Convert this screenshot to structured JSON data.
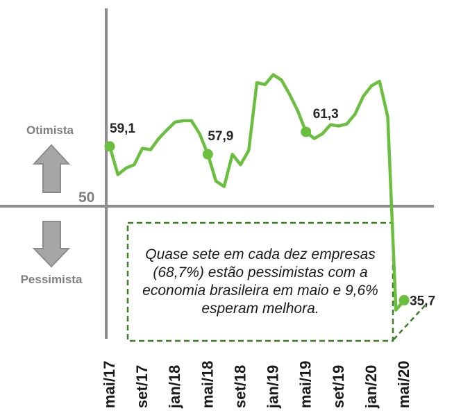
{
  "chart_data": {
    "type": "line",
    "x": [
      "mai/17",
      "jun/17",
      "jul/17",
      "ago/17",
      "set/17",
      "out/17",
      "nov/17",
      "dez/17",
      "jan/18",
      "fev/18",
      "mar/18",
      "abr/18",
      "mai/18",
      "jun/18",
      "jul/18",
      "ago/18",
      "set/18",
      "out/18",
      "nov/18",
      "dez/18",
      "jan/19",
      "fev/19",
      "mar/19",
      "abr/19",
      "mai/19",
      "jun/19",
      "jul/19",
      "ago/19",
      "set/19",
      "out/19",
      "nov/19",
      "dez/19",
      "jan/20",
      "fev/20",
      "mar/20",
      "abr/20",
      "mai/20"
    ],
    "tick_labels": [
      "mai/17",
      "set/17",
      "jan/18",
      "mai/18",
      "set/18",
      "jan/19",
      "mai/19",
      "set/19",
      "jan/20",
      "mai/20"
    ],
    "series": [
      {
        "values": [
          59.1,
          54.8,
          55.8,
          56.3,
          58.8,
          58.6,
          60.3,
          61.6,
          62.8,
          63.0,
          63.0,
          61.0,
          57.9,
          53.8,
          53.0,
          57.9,
          56.3,
          58.5,
          68.8,
          68.5,
          70.0,
          69.2,
          67.0,
          64.5,
          61.3,
          60.3,
          61.0,
          62.4,
          62.2,
          62.5,
          64.0,
          66.7,
          68.3,
          69.0,
          63.6,
          34.2,
          35.7
        ],
        "color": "#6abf3f"
      }
    ],
    "highlights": [
      {
        "x": "mai/17",
        "value": 59.1,
        "label": "59,1"
      },
      {
        "x": "mai/18",
        "value": 57.9,
        "label": "57,9"
      },
      {
        "x": "mai/19",
        "value": 61.3,
        "label": "61,3"
      },
      {
        "x": "mai/20",
        "value": 35.7,
        "label": "35,7"
      }
    ],
    "reference_line": {
      "value": 50,
      "label": "50"
    },
    "optimist_label": "Otimista",
    "pessimist_label": "Pessimista",
    "ylim": [
      34,
      71
    ],
    "grid": false,
    "colors": {
      "line": "#6abf3f",
      "marker": "#6abf3f",
      "axis": "#8c8c8c",
      "arrow": "#a6a6a6",
      "callout_border": "#3a7d23"
    }
  },
  "callout": {
    "text": "Quase sete em cada dez empresas (68,7%) estão pessimistas com a economia brasileira em maio e 9,6% esperam melhora."
  }
}
